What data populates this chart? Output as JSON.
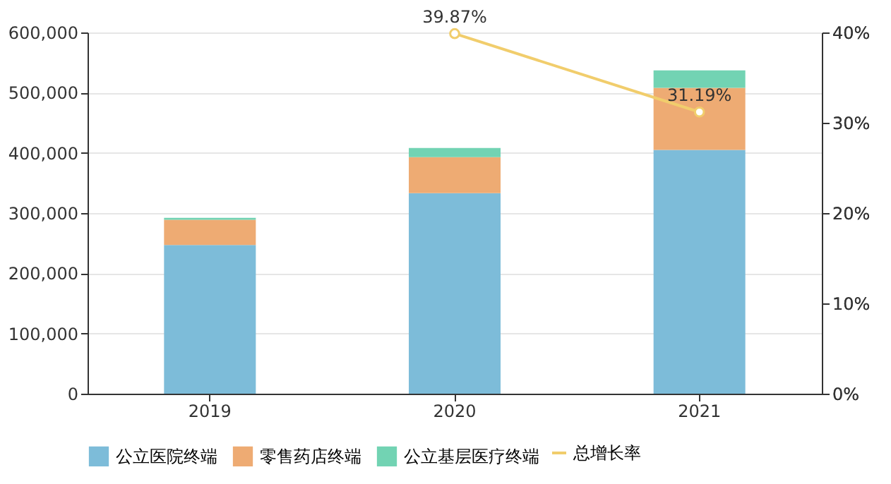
{
  "chart_data": {
    "type": "bar",
    "stacked": true,
    "categories": [
      "2019",
      "2020",
      "2021"
    ],
    "series": [
      {
        "name": "公立医院终端",
        "color": "#7dbcd9",
        "values": [
          247000,
          333000,
          405000
        ]
      },
      {
        "name": "零售药店终端",
        "color": "#eeab73",
        "values": [
          42000,
          60000,
          103000
        ]
      },
      {
        "name": "公立基层医疗终端",
        "color": "#72d3b3",
        "values": [
          3000,
          15000,
          29000
        ]
      },
      {
        "name": "总增长率",
        "color": "#f1cd6c",
        "type": "line",
        "axis": "y2",
        "marker": "circle",
        "values": [
          null,
          39.87,
          31.19
        ],
        "value_labels": [
          null,
          "39.87%",
          "31.19%"
        ]
      }
    ],
    "ylim": [
      0,
      600000
    ],
    "yticks": [
      {
        "value": 0,
        "label": "0"
      },
      {
        "value": 100000,
        "label": "100,000"
      },
      {
        "value": 200000,
        "label": "200,000"
      },
      {
        "value": 300000,
        "label": "300,000"
      },
      {
        "value": 400000,
        "label": "400,000"
      },
      {
        "value": 500000,
        "label": "500,000"
      },
      {
        "value": 600000,
        "label": "600,000"
      }
    ],
    "y2lim": [
      0,
      40
    ],
    "y2ticks": [
      {
        "value": 0,
        "label": "0%"
      },
      {
        "value": 10,
        "label": "10%"
      },
      {
        "value": 20,
        "label": "20%"
      },
      {
        "value": 30,
        "label": "30%"
      },
      {
        "value": 40,
        "label": "40%"
      }
    ],
    "grid": "y",
    "legend": "bottom"
  }
}
